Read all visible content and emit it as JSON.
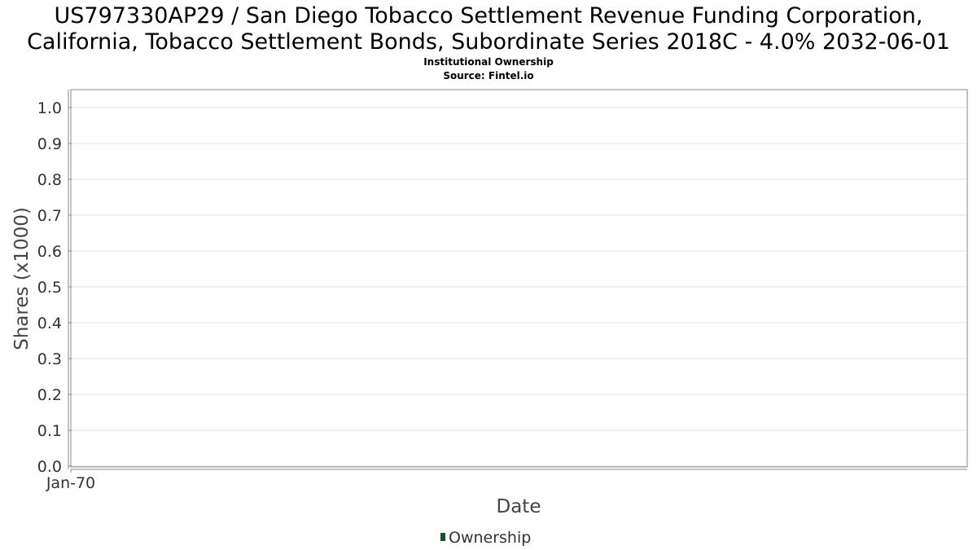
{
  "chart_data": {
    "type": "line",
    "title_line1": "US797330AP29 / San Diego Tobacco Settlement Revenue Funding Corporation,",
    "title_line2": "California, Tobacco Settlement Bonds, Subordinate Series 2018C - 4.0% 2032-06-01",
    "subtitle_line1": "Institutional Ownership",
    "subtitle_line2": "Source: Fintel.io",
    "xlabel": "Date",
    "ylabel": "Shares (x1000)",
    "x_ticks": [
      "Jan-70"
    ],
    "y_ticks": [
      "0.0",
      "0.1",
      "0.2",
      "0.3",
      "0.4",
      "0.5",
      "0.6",
      "0.7",
      "0.8",
      "0.9",
      "1.0"
    ],
    "ylim": [
      0,
      1.0
    ],
    "grid": true,
    "legend_position": "bottom-center",
    "series": [
      {
        "name": "Ownership",
        "color": "#1e4d2b",
        "x": [],
        "values": []
      }
    ]
  }
}
